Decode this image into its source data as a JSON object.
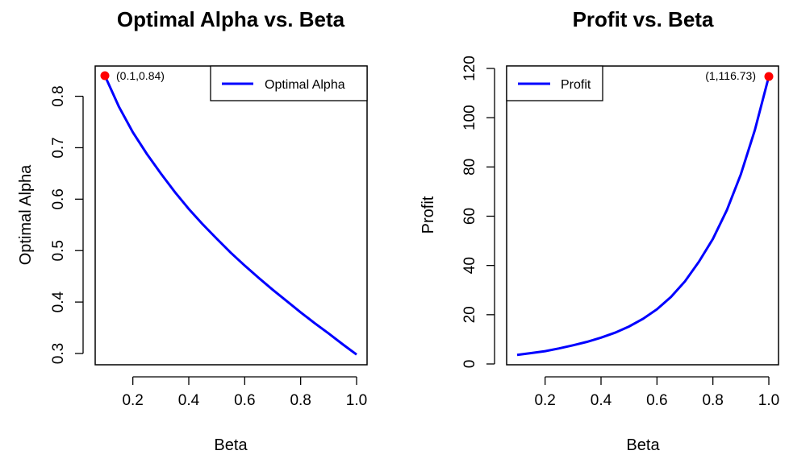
{
  "chart_data": [
    {
      "type": "line",
      "title": "Optimal Alpha vs. Beta",
      "xlabel": "Beta",
      "ylabel": "Optimal Alpha",
      "xlim": [
        0.1,
        1.0
      ],
      "ylim": [
        0.3,
        0.84
      ],
      "xticks": [
        0.2,
        0.4,
        0.6,
        0.8,
        1.0
      ],
      "xtick_labels": [
        "0.2",
        "0.4",
        "0.6",
        "0.8",
        "1.0"
      ],
      "yticks": [
        0.3,
        0.4,
        0.5,
        0.6,
        0.7,
        0.8
      ],
      "ytick_labels": [
        "0.3",
        "0.4",
        "0.5",
        "0.6",
        "0.7",
        "0.8"
      ],
      "legend_position": "top-right",
      "series": [
        {
          "name": "Optimal Alpha",
          "color": "#0000ff",
          "x": [
            0.1,
            0.15,
            0.2,
            0.25,
            0.3,
            0.35,
            0.4,
            0.45,
            0.5,
            0.55,
            0.6,
            0.65,
            0.7,
            0.75,
            0.8,
            0.85,
            0.9,
            0.95,
            1.0
          ],
          "y": [
            0.84,
            0.78,
            0.73,
            0.688,
            0.65,
            0.614,
            0.581,
            0.551,
            0.523,
            0.496,
            0.471,
            0.447,
            0.424,
            0.402,
            0.38,
            0.359,
            0.339,
            0.318,
            0.298
          ]
        }
      ],
      "highlight": {
        "x": 0.1,
        "y": 0.84,
        "label": "(0.1,0.84)",
        "color": "#ff0000"
      }
    },
    {
      "type": "line",
      "title": "Profit vs. Beta",
      "xlabel": "Beta",
      "ylabel": "Profit",
      "xlim": [
        0.1,
        1.0
      ],
      "ylim": [
        0,
        120
      ],
      "xticks": [
        0.2,
        0.4,
        0.6,
        0.8,
        1.0
      ],
      "xtick_labels": [
        "0.2",
        "0.4",
        "0.6",
        "0.8",
        "1.0"
      ],
      "yticks": [
        0,
        20,
        40,
        60,
        80,
        100,
        120
      ],
      "ytick_labels": [
        "0",
        "20",
        "40",
        "60",
        "80",
        "100",
        "120"
      ],
      "legend_position": "top-left",
      "series": [
        {
          "name": "Profit",
          "color": "#0000ff",
          "x": [
            0.1,
            0.15,
            0.2,
            0.25,
            0.3,
            0.35,
            0.4,
            0.45,
            0.5,
            0.55,
            0.6,
            0.65,
            0.7,
            0.75,
            0.8,
            0.85,
            0.9,
            0.95,
            1.0
          ],
          "y": [
            3.7,
            4.4,
            5.2,
            6.3,
            7.6,
            9.0,
            10.7,
            12.7,
            15.2,
            18.3,
            22.2,
            27.2,
            33.5,
            41.5,
            50.8,
            62.5,
            77.0,
            95.0,
            116.73
          ]
        }
      ],
      "highlight": {
        "x": 1.0,
        "y": 116.73,
        "label": "(1,116.73)",
        "color": "#ff0000"
      }
    }
  ]
}
